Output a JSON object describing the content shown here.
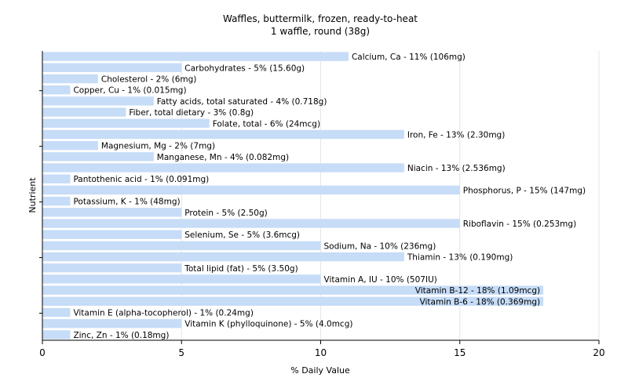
{
  "chart_data": {
    "type": "bar",
    "orientation": "horizontal",
    "title": "Waffles, buttermilk, frozen, ready-to-heat",
    "subtitle": "1 waffle, round (38g)",
    "xlabel": "% Daily Value",
    "ylabel": "Nutrient",
    "xlim": [
      0,
      20
    ],
    "x_ticks": [
      "0",
      "5",
      "10",
      "15",
      "20"
    ],
    "grid": "vertical",
    "bar_color": "#c6dcf7",
    "categories": [
      "Calcium, Ca",
      "Carbohydrates",
      "Cholesterol",
      "Copper, Cu",
      "Fatty acids, total saturated",
      "Fiber, total dietary",
      "Folate, total",
      "Iron, Fe",
      "Magnesium, Mg",
      "Manganese, Mn",
      "Niacin",
      "Pantothenic acid",
      "Phosphorus, P",
      "Potassium, K",
      "Protein",
      "Riboflavin",
      "Selenium, Se",
      "Sodium, Na",
      "Thiamin",
      "Total lipid (fat)",
      "Vitamin A, IU",
      "Vitamin B-12",
      "Vitamin B-6",
      "Vitamin E (alpha-tocopherol)",
      "Vitamin K (phylloquinone)",
      "Zinc, Zn"
    ],
    "values": [
      11,
      5,
      2,
      1,
      4,
      3,
      6,
      13,
      2,
      4,
      13,
      1,
      15,
      1,
      5,
      15,
      5,
      10,
      13,
      5,
      10,
      18,
      18,
      1,
      5,
      1
    ],
    "labels": [
      "Calcium, Ca - 11% (106mg)",
      "Carbohydrates - 5% (15.60g)",
      "Cholesterol - 2% (6mg)",
      "Copper, Cu - 1% (0.015mg)",
      "Fatty acids, total saturated - 4% (0.718g)",
      "Fiber, total dietary - 3% (0.8g)",
      "Folate, total - 6% (24mcg)",
      "Iron, Fe - 13% (2.30mg)",
      "Magnesium, Mg - 2% (7mg)",
      "Manganese, Mn - 4% (0.082mg)",
      "Niacin - 13% (2.536mg)",
      "Pantothenic acid - 1% (0.091mg)",
      "Phosphorus, P - 15% (147mg)",
      "Potassium, K - 1% (48mg)",
      "Protein - 5% (2.50g)",
      "Riboflavin - 15% (0.253mg)",
      "Selenium, Se - 5% (3.6mcg)",
      "Sodium, Na - 10% (236mg)",
      "Thiamin - 13% (0.190mg)",
      "Total lipid (fat) - 5% (3.50g)",
      "Vitamin A, IU - 10% (507IU)",
      "Vitamin B-12 - 18% (1.09mcg)",
      "Vitamin B-6 - 18% (0.369mg)",
      "Vitamin E (alpha-tocopherol) - 1% (0.24mg)",
      "Vitamin K (phylloquinone) - 5% (4.0mcg)",
      "Zinc, Zn - 1% (0.18mg)"
    ]
  }
}
